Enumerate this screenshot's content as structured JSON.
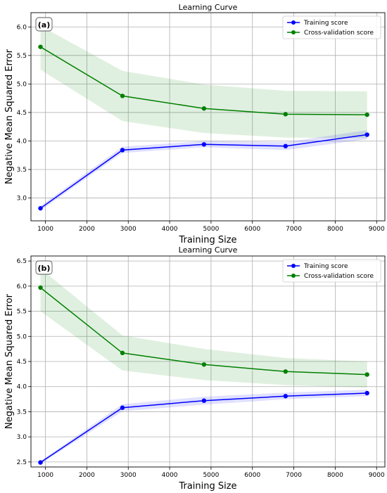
{
  "chart_data": [
    {
      "type": "line",
      "panel_label": "(a)",
      "title": "Learning Curve",
      "xlabel": "Training Size",
      "ylabel": "Negative Mean Squared Error",
      "xlim": [
        650,
        9200
      ],
      "ylim": [
        2.6,
        6.25
      ],
      "xticks": [
        1000,
        2000,
        3000,
        4000,
        5000,
        6000,
        7000,
        8000,
        9000
      ],
      "yticks": [
        3.0,
        3.5,
        4.0,
        4.5,
        5.0,
        5.5,
        6.0
      ],
      "grid": true,
      "legend_position": "top-right",
      "x": [
        880,
        2860,
        4830,
        6800,
        8770
      ],
      "series": [
        {
          "name": "Training score",
          "color": "#0000ff",
          "values": [
            2.82,
            3.84,
            3.94,
            3.91,
            4.11
          ],
          "band_lower": [
            2.78,
            3.79,
            3.89,
            3.84,
            4.03
          ],
          "band_upper": [
            2.86,
            3.9,
            4.0,
            3.98,
            4.19
          ]
        },
        {
          "name": "Cross-validation score",
          "color": "#008000",
          "values": [
            5.65,
            4.79,
            4.57,
            4.47,
            4.46
          ],
          "band_lower": [
            5.25,
            4.35,
            4.14,
            4.06,
            4.05
          ],
          "band_upper": [
            6.02,
            5.23,
            4.99,
            4.88,
            4.87
          ]
        }
      ]
    },
    {
      "type": "line",
      "panel_label": "(b)",
      "title": "Learning Curve",
      "xlabel": "Training Size",
      "ylabel": "Negative Mean Squared Error",
      "xlim": [
        650,
        9200
      ],
      "ylim": [
        2.4,
        6.6
      ],
      "xticks": [
        1000,
        2000,
        3000,
        4000,
        5000,
        6000,
        7000,
        8000,
        9000
      ],
      "yticks": [
        2.5,
        3.0,
        3.5,
        4.0,
        4.5,
        5.0,
        5.5,
        6.0,
        6.5
      ],
      "grid": true,
      "legend_position": "top-right",
      "x": [
        880,
        2860,
        4830,
        6800,
        8770
      ],
      "series": [
        {
          "name": "Training score",
          "color": "#0000ff",
          "values": [
            2.49,
            3.58,
            3.72,
            3.81,
            3.87
          ],
          "band_lower": [
            2.46,
            3.51,
            3.64,
            3.75,
            3.81
          ],
          "band_upper": [
            2.52,
            3.65,
            3.8,
            3.88,
            3.94
          ]
        },
        {
          "name": "Cross-validation score",
          "color": "#008000",
          "values": [
            5.97,
            4.67,
            4.44,
            4.3,
            4.24
          ],
          "band_lower": [
            5.5,
            4.32,
            4.13,
            4.03,
            3.98
          ],
          "band_upper": [
            6.35,
            5.02,
            4.75,
            4.57,
            4.5
          ]
        }
      ]
    }
  ]
}
